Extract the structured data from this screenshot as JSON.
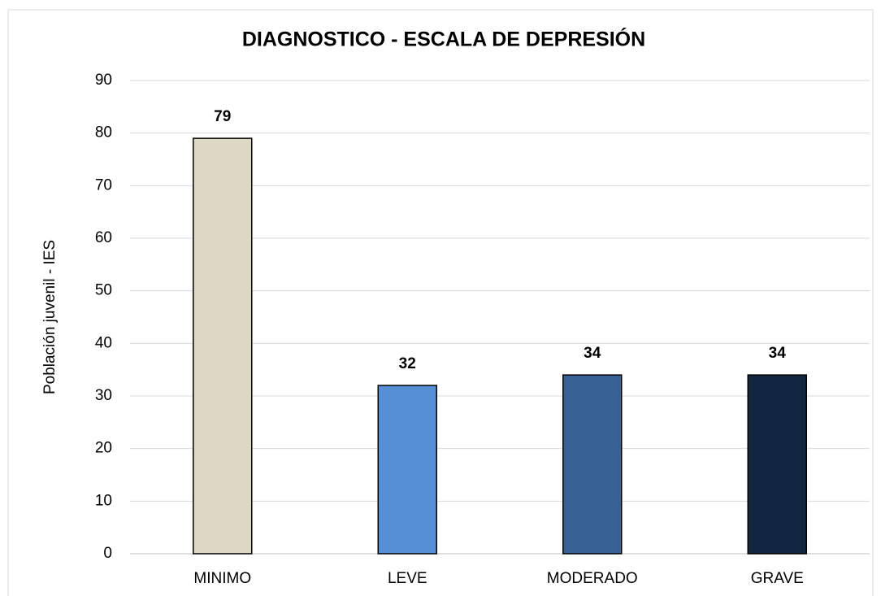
{
  "chart_data": {
    "type": "bar",
    "title": "DIAGNOSTICO - ESCALA DE DEPRESIÓN",
    "y_label": "Población juvenil - IES",
    "categories": [
      "MINIMO",
      "LEVE",
      "MODERADO",
      "GRAVE"
    ],
    "values": [
      79,
      32,
      34,
      34
    ],
    "colors": [
      "#ddd8c4",
      "#5590d6",
      "#376094",
      "#13263f"
    ],
    "ylim": [
      0,
      90
    ],
    "yticks": [
      0,
      10,
      20,
      30,
      40,
      50,
      60,
      70,
      80,
      90
    ],
    "grid": true
  }
}
